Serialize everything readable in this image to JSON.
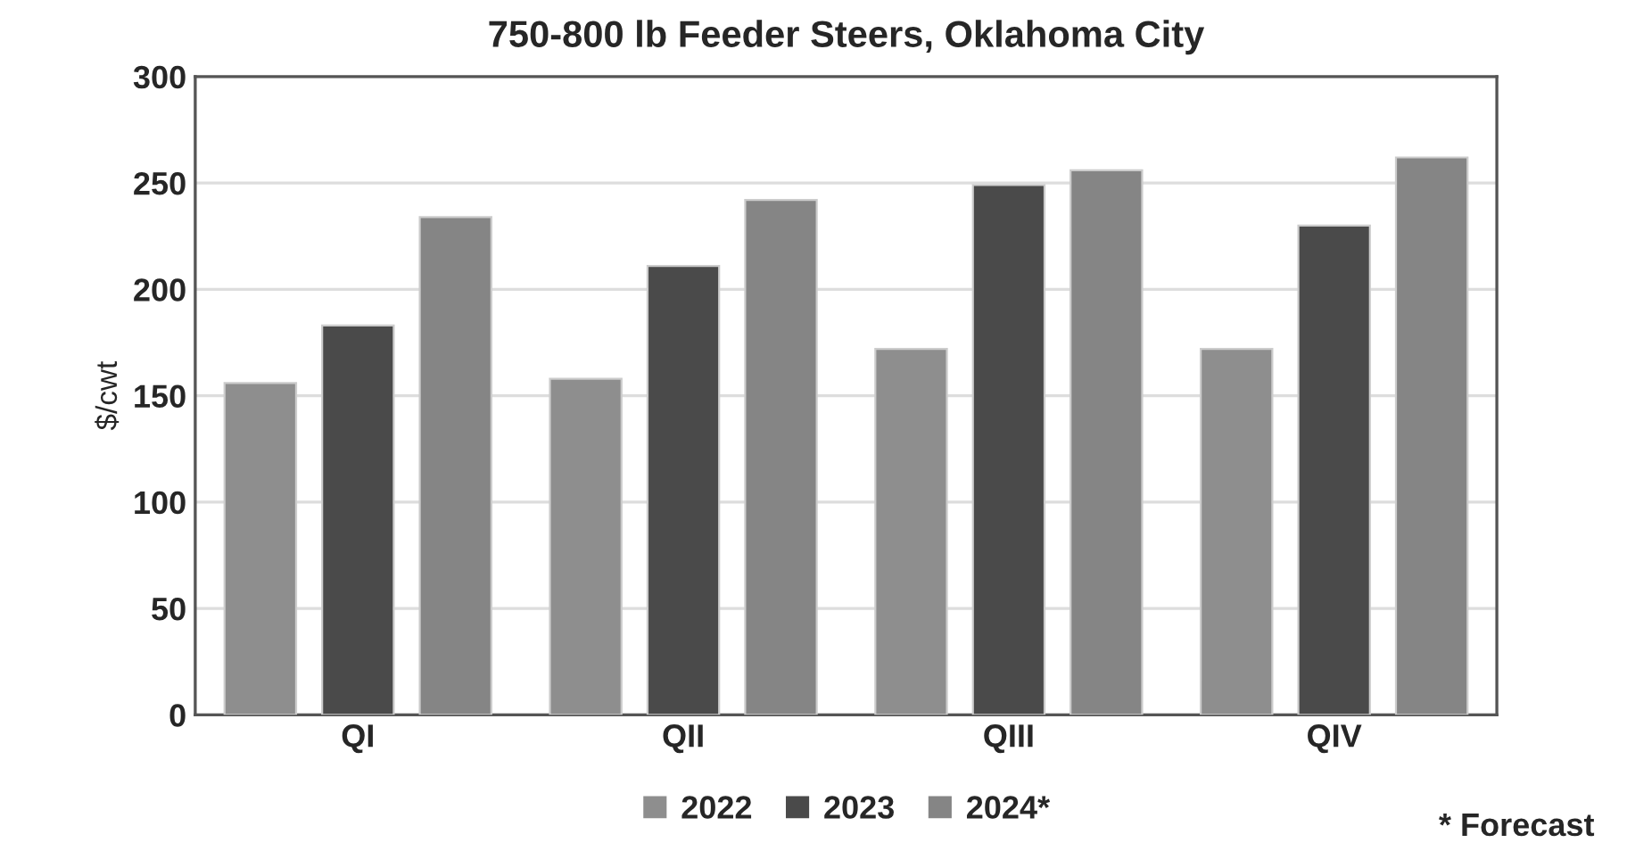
{
  "chart_data": {
    "type": "bar",
    "title": "750-800 lb Feeder Steers, Oklahoma City",
    "ylabel": "$/cwt",
    "categories": [
      "QI",
      "QII",
      "QIII",
      "QIV"
    ],
    "series": [
      {
        "name": "2022",
        "color": "#8e8e8e",
        "values": [
          156,
          158,
          172,
          172
        ]
      },
      {
        "name": "2023",
        "color": "#4a4a4a",
        "values": [
          183,
          211,
          249,
          230
        ]
      },
      {
        "name": "2024*",
        "color": "#858585",
        "values": [
          234,
          242,
          256,
          262
        ]
      }
    ],
    "ylim": [
      0,
      300
    ],
    "yticks": [
      0,
      50,
      100,
      150,
      200,
      250,
      300
    ],
    "grid": "y",
    "legend": "bottom",
    "annotations": [
      "* Forecast"
    ]
  }
}
